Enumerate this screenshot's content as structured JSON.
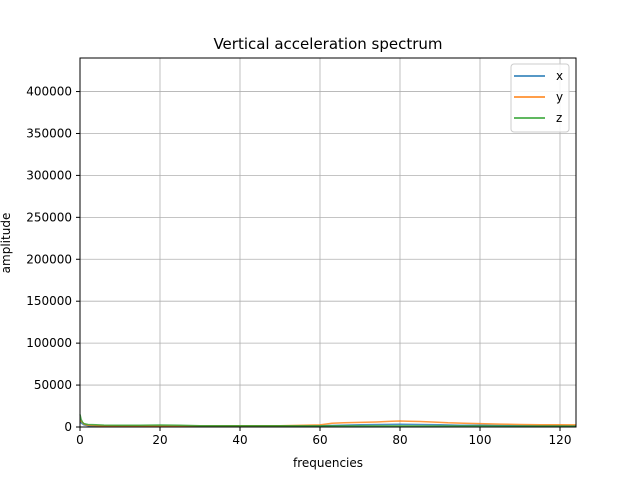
{
  "chart_data": {
    "type": "line",
    "title": "Vertical acceleration spectrum",
    "xlabel": "frequencies",
    "ylabel": "amplitude",
    "xlim": [
      0,
      124
    ],
    "ylim": [
      0,
      440000
    ],
    "x_ticks": [
      0,
      20,
      40,
      60,
      80,
      100,
      120
    ],
    "y_ticks": [
      0,
      50000,
      100000,
      150000,
      200000,
      250000,
      300000,
      350000,
      400000
    ],
    "grid": true,
    "legend_position": "top-right",
    "series": [
      {
        "name": "x",
        "color": "#1f77b4",
        "x": [
          0,
          0.5,
          1,
          2,
          5,
          10,
          20,
          30,
          40,
          50,
          60,
          65,
          70,
          75,
          80,
          85,
          90,
          95,
          100,
          105,
          110,
          115,
          120,
          124
        ],
        "values": [
          6000,
          4000,
          2500,
          1500,
          1200,
          1000,
          900,
          800,
          900,
          1000,
          1500,
          2200,
          2800,
          3000,
          3200,
          3000,
          2600,
          2200,
          2000,
          1800,
          1600,
          1500,
          1400,
          1300
        ]
      },
      {
        "name": "y",
        "color": "#ff7f0e",
        "x": [
          0,
          0.5,
          1,
          2,
          5,
          10,
          20,
          30,
          40,
          50,
          60,
          63,
          66,
          70,
          74,
          78,
          80,
          82,
          85,
          88,
          92,
          96,
          100,
          105,
          110,
          115,
          120,
          124
        ],
        "values": [
          8000,
          6000,
          3500,
          2000,
          1500,
          1300,
          1200,
          1100,
          1300,
          1600,
          2500,
          4500,
          5000,
          5500,
          6000,
          6800,
          7200,
          6900,
          6500,
          6000,
          5000,
          4500,
          4000,
          3500,
          3000,
          2800,
          2600,
          2500
        ]
      },
      {
        "name": "z",
        "color": "#2ca02c",
        "x": [
          0,
          0.3,
          0.6,
          1,
          2,
          4,
          6,
          10,
          15,
          20,
          25,
          30,
          40,
          50,
          60,
          70,
          80,
          90,
          100,
          110,
          120,
          124
        ],
        "values": [
          15000,
          9000,
          6000,
          4000,
          3000,
          2600,
          2300,
          2000,
          2200,
          2400,
          2000,
          1600,
          1500,
          1400,
          1300,
          1300,
          1300,
          1200,
          1200,
          1100,
          1100,
          1000
        ]
      }
    ]
  }
}
